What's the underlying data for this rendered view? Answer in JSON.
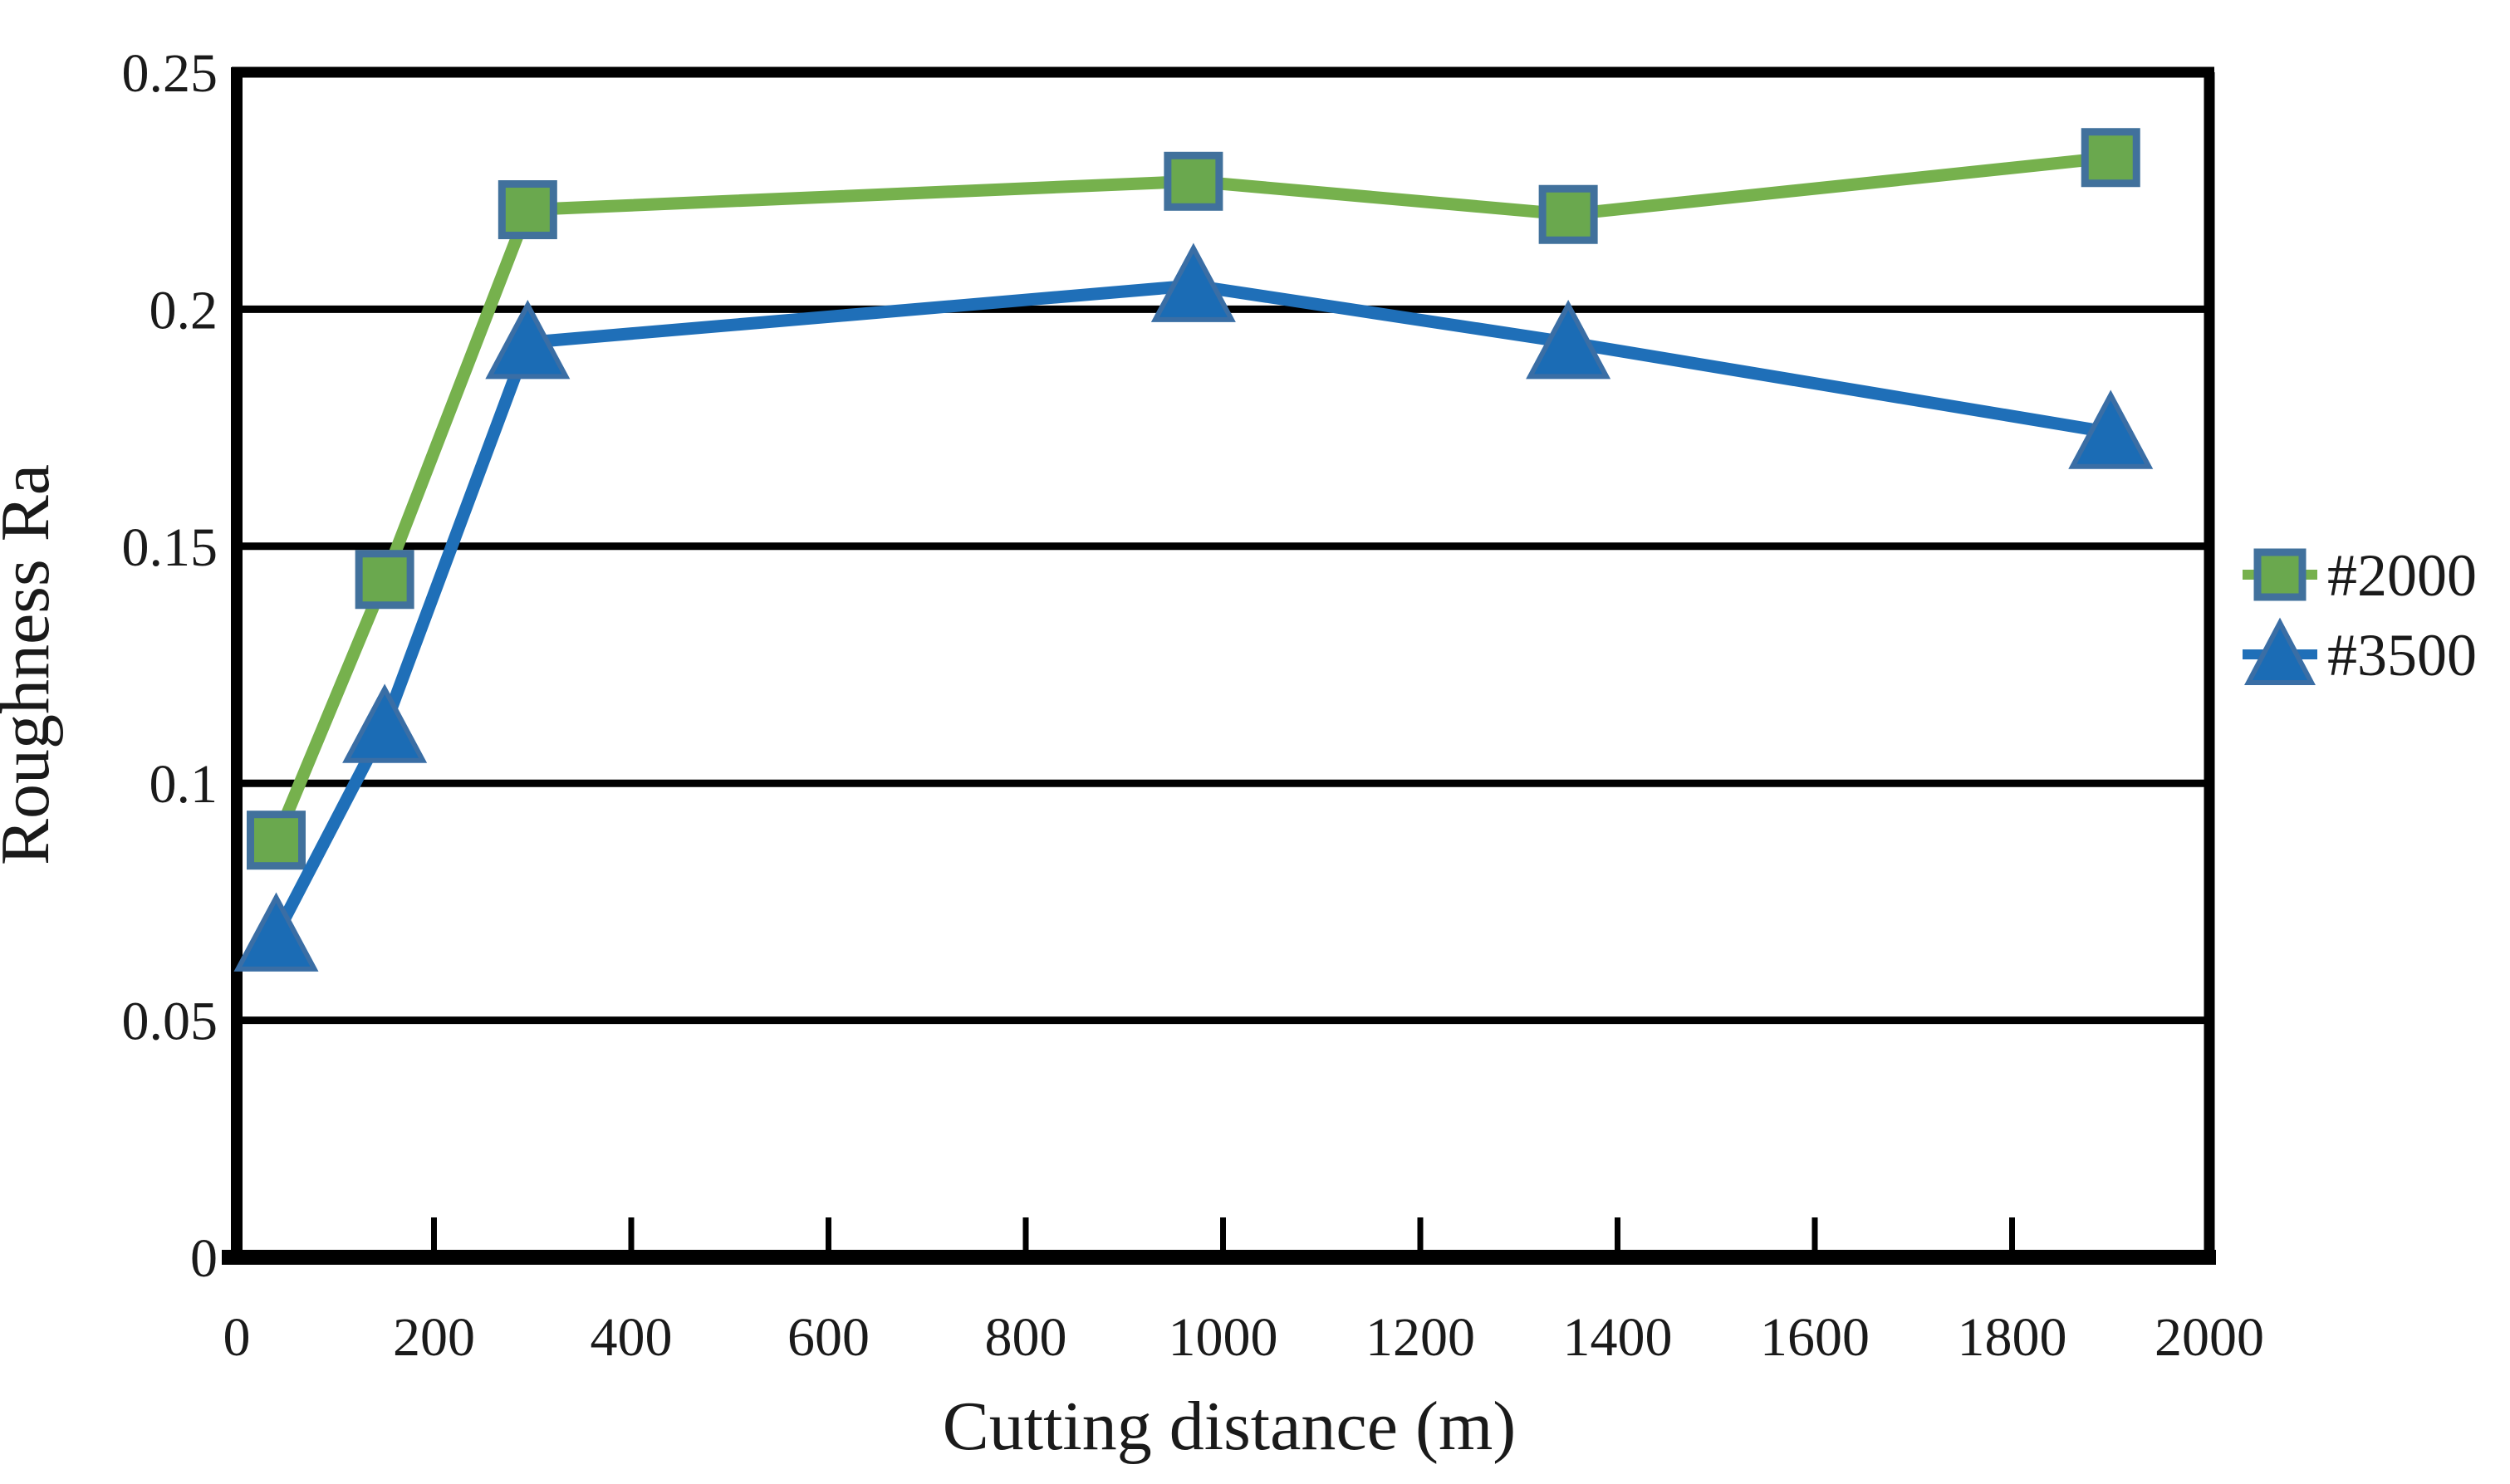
{
  "figure": {
    "background": "#ffffff",
    "text_color": "#1a1a1a",
    "axis_color": "#000000"
  },
  "chart_data": {
    "type": "line",
    "title": "",
    "xlabel": "Cutting distance (m)",
    "ylabel": "Roughness Ra",
    "xlim": [
      0,
      2000
    ],
    "ylim": [
      0,
      0.25
    ],
    "x_ticks": [
      0,
      200,
      400,
      600,
      800,
      1000,
      1200,
      1400,
      1600,
      1800,
      2000
    ],
    "x_tick_labels": [
      "0",
      "200",
      "400",
      "600",
      "800",
      "1000",
      "1200",
      "1400",
      "1600",
      "1800",
      "2000"
    ],
    "y_ticks": [
      0,
      0.05,
      0.1,
      0.15,
      0.2,
      0.25
    ],
    "y_tick_labels": [
      "0",
      "0.05",
      "0.1",
      "0.15",
      "0.2",
      "0.25"
    ],
    "grid": "horizontal-black-gridlines-at-y-ticks",
    "legend_position": "right-middle-outside",
    "x": [
      40,
      150,
      295,
      970,
      1350,
      1900
    ],
    "series": [
      {
        "name": "#2000",
        "marker": "square",
        "marker_fill": "#6aa84e",
        "marker_border": "#41719c",
        "line_color": "#76b14d",
        "values": [
          0.088,
          0.143,
          0.221,
          0.227,
          0.22,
          0.232
        ]
      },
      {
        "name": "#3500",
        "marker": "triangle",
        "marker_fill": "#1b6cb5",
        "marker_border": "#3a6ea5",
        "line_color": "#1f6fb8",
        "values": [
          0.068,
          0.112,
          0.193,
          0.205,
          0.193,
          0.174
        ]
      }
    ]
  }
}
